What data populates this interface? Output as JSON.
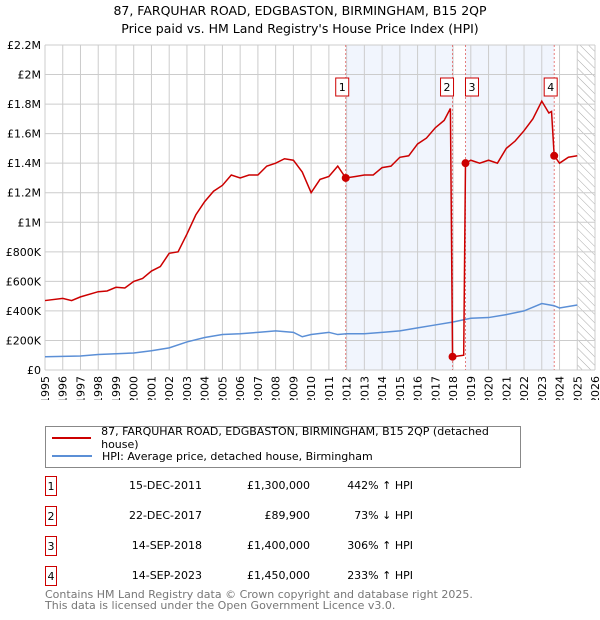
{
  "title": "87, FARQUHAR ROAD, EDGBASTON, BIRMINGHAM, B15 2QP",
  "subtitle": "Price paid vs. HM Land Registry's House Price Index (HPI)",
  "chart_data": {
    "type": "line",
    "xlim": [
      1995,
      2026
    ],
    "ylim": [
      0,
      2200000
    ],
    "yticks": [
      0,
      200000,
      400000,
      600000,
      800000,
      1000000,
      1200000,
      1400000,
      1600000,
      1800000,
      2000000,
      2200000
    ],
    "ytick_labels": [
      "£0",
      "£200K",
      "£400K",
      "£600K",
      "£800K",
      "£1M",
      "£1.2M",
      "£1.4M",
      "£1.6M",
      "£1.8M",
      "£2M",
      "£2.2M"
    ],
    "xticks": [
      1995,
      1996,
      1997,
      1998,
      1999,
      2000,
      2001,
      2002,
      2003,
      2004,
      2005,
      2006,
      2007,
      2008,
      2009,
      2010,
      2011,
      2012,
      2013,
      2014,
      2015,
      2016,
      2017,
      2018,
      2019,
      2020,
      2021,
      2022,
      2023,
      2024,
      2025,
      2026
    ],
    "grid": true,
    "series": [
      {
        "name": "87, FARQUHAR ROAD, EDGBASTON, BIRMINGHAM, B15 2QP (detached house)",
        "color": "#cc0000",
        "points": [
          [
            1995,
            470000
          ],
          [
            1996,
            485000
          ],
          [
            1996.5,
            470000
          ],
          [
            1997,
            495000
          ],
          [
            1998,
            530000
          ],
          [
            1998.5,
            535000
          ],
          [
            1999,
            560000
          ],
          [
            1999.5,
            555000
          ],
          [
            2000,
            600000
          ],
          [
            2000.5,
            620000
          ],
          [
            2001,
            670000
          ],
          [
            2001.5,
            700000
          ],
          [
            2002,
            790000
          ],
          [
            2002.5,
            800000
          ],
          [
            2003,
            920000
          ],
          [
            2003.5,
            1050000
          ],
          [
            2004,
            1140000
          ],
          [
            2004.5,
            1210000
          ],
          [
            2005,
            1250000
          ],
          [
            2005.5,
            1320000
          ],
          [
            2006,
            1300000
          ],
          [
            2006.5,
            1320000
          ],
          [
            2007,
            1320000
          ],
          [
            2007.5,
            1380000
          ],
          [
            2008,
            1400000
          ],
          [
            2008.5,
            1430000
          ],
          [
            2009,
            1420000
          ],
          [
            2009.5,
            1340000
          ],
          [
            2010,
            1200000
          ],
          [
            2010.5,
            1290000
          ],
          [
            2011,
            1310000
          ],
          [
            2011.5,
            1380000
          ],
          [
            2011.95,
            1300000
          ],
          [
            2012.5,
            1310000
          ],
          [
            2013,
            1320000
          ],
          [
            2013.5,
            1320000
          ],
          [
            2014,
            1370000
          ],
          [
            2014.5,
            1380000
          ],
          [
            2015,
            1440000
          ],
          [
            2015.5,
            1450000
          ],
          [
            2016,
            1530000
          ],
          [
            2016.5,
            1570000
          ],
          [
            2017,
            1640000
          ],
          [
            2017.5,
            1690000
          ],
          [
            2017.85,
            1770000
          ],
          [
            2017.97,
            89900
          ],
          [
            2018.6,
            100000
          ],
          [
            2018.7,
            1400000
          ],
          [
            2019,
            1420000
          ],
          [
            2019.5,
            1400000
          ],
          [
            2020,
            1420000
          ],
          [
            2020.5,
            1400000
          ],
          [
            2021,
            1500000
          ],
          [
            2021.5,
            1550000
          ],
          [
            2022,
            1620000
          ],
          [
            2022.5,
            1700000
          ],
          [
            2023,
            1820000
          ],
          [
            2023.4,
            1740000
          ],
          [
            2023.55,
            1750000
          ],
          [
            2023.7,
            1450000
          ],
          [
            2024,
            1400000
          ],
          [
            2024.5,
            1440000
          ],
          [
            2025,
            1450000
          ]
        ]
      },
      {
        "name": "HPI: Average price, detached house, Birmingham",
        "color": "#5b8fd6",
        "points": [
          [
            1995,
            90000
          ],
          [
            1997,
            95000
          ],
          [
            1998,
            105000
          ],
          [
            2000,
            115000
          ],
          [
            2001,
            130000
          ],
          [
            2002,
            150000
          ],
          [
            2003,
            190000
          ],
          [
            2004,
            220000
          ],
          [
            2005,
            240000
          ],
          [
            2006,
            245000
          ],
          [
            2007,
            255000
          ],
          [
            2008,
            265000
          ],
          [
            2009,
            255000
          ],
          [
            2009.5,
            225000
          ],
          [
            2010,
            240000
          ],
          [
            2011,
            255000
          ],
          [
            2011.5,
            240000
          ],
          [
            2012,
            245000
          ],
          [
            2013,
            245000
          ],
          [
            2014,
            255000
          ],
          [
            2015,
            265000
          ],
          [
            2016,
            285000
          ],
          [
            2017,
            305000
          ],
          [
            2018,
            325000
          ],
          [
            2019,
            350000
          ],
          [
            2020,
            355000
          ],
          [
            2021,
            375000
          ],
          [
            2022,
            400000
          ],
          [
            2023,
            450000
          ],
          [
            2023.7,
            435000
          ],
          [
            2024,
            420000
          ],
          [
            2025,
            440000
          ]
        ]
      }
    ],
    "sales": [
      {
        "id": "1",
        "x": 2011.95,
        "y": 1300000,
        "date": "15-DEC-2011",
        "price": "£1,300,000",
        "hpi": "442% ↑ HPI"
      },
      {
        "id": "2",
        "x": 2017.97,
        "y": 89900,
        "date": "22-DEC-2017",
        "price": "£89,900",
        "hpi": "73% ↓ HPI"
      },
      {
        "id": "3",
        "x": 2018.7,
        "y": 1400000,
        "date": "14-SEP-2018",
        "price": "£1,400,000",
        "hpi": "306% ↑ HPI"
      },
      {
        "id": "4",
        "x": 2023.7,
        "y": 1450000,
        "date": "14-SEP-2023",
        "price": "£1,450,000",
        "hpi": "233% ↑ HPI"
      }
    ],
    "forecast_from": 2025
  },
  "footer": [
    "Contains HM Land Registry data © Crown copyright and database right 2025.",
    "This data is licensed under the Open Government Licence v3.0."
  ]
}
